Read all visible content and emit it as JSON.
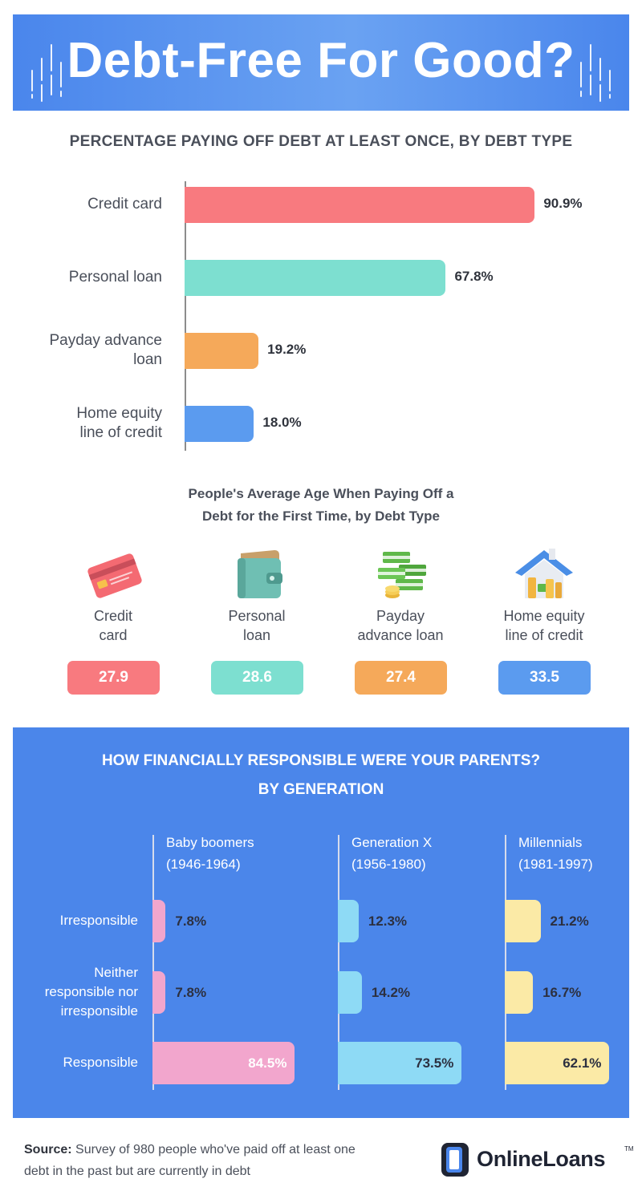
{
  "header": {
    "title": "Debt-Free For Good?"
  },
  "section1": {
    "title": "PERCENTAGE PAYING OFF DEBT AT LEAST ONCE, BY DEBT TYPE"
  },
  "section2": {
    "title_line1": "People's Average Age When Paying Off a",
    "title_line2": "Debt for the First Time, by Debt Type",
    "items": [
      {
        "label_line1": "Credit",
        "label_line2": "card",
        "value": "27.9",
        "color": "#f87a7f",
        "icon": "credit-card-icon"
      },
      {
        "label_line1": "Personal",
        "label_line2": "loan",
        "value": "28.6",
        "color": "#7ddfd0",
        "icon": "wallet-icon"
      },
      {
        "label_line1": "Payday",
        "label_line2": "advance loan",
        "value": "27.4",
        "color": "#f5a95a",
        "icon": "cash-stack-icon"
      },
      {
        "label_line1": "Home equity",
        "label_line2": "line of credit",
        "value": "33.5",
        "color": "#5b9bef",
        "icon": "house-coins-icon"
      }
    ]
  },
  "section3": {
    "title_line1": "HOW FINANCIALLY RESPONSIBLE WERE YOUR PARENTS?",
    "title_line2": "BY GENERATION"
  },
  "source": {
    "label": "Source:",
    "text": " Survey of 980 people who've paid off at least one debt in the past but are currently in debt"
  },
  "logo": {
    "text": "OnlineLoans",
    "tm": "TM"
  },
  "chart_data": [
    {
      "type": "bar",
      "orientation": "horizontal",
      "title": "PERCENTAGE PAYING OFF DEBT AT LEAST ONCE, BY DEBT TYPE",
      "categories": [
        [
          "Credit card"
        ],
        [
          "Personal loan"
        ],
        [
          "Payday advance",
          "loan"
        ],
        [
          "Home equity",
          "line of credit"
        ]
      ],
      "values": [
        90.9,
        67.8,
        19.2,
        18.0
      ],
      "labels": [
        "90.9%",
        "67.8%",
        "19.2%",
        "18.0%"
      ],
      "colors": [
        "#f87a7f",
        "#7ddfd0",
        "#f5a95a",
        "#5b9bef"
      ],
      "xlim": [
        0,
        100
      ],
      "grid": false,
      "legend": "none"
    },
    {
      "type": "bar",
      "orientation": "horizontal",
      "title": "HOW FINANCIALLY RESPONSIBLE WERE YOUR PARENTS? BY GENERATION",
      "categories": [
        [
          "Irresponsible"
        ],
        [
          "Neither",
          "responsible nor",
          "irresponsible"
        ],
        [
          "Responsible"
        ]
      ],
      "series": [
        {
          "name": "Baby boomers",
          "years": "(1946-1964)",
          "values": [
            7.8,
            7.8,
            84.5
          ],
          "labels": [
            "7.8%",
            "7.8%",
            "84.5%"
          ],
          "color": "#f2a6cd"
        },
        {
          "name": "Generation X",
          "years": "(1956-1980)",
          "values": [
            12.3,
            14.2,
            73.5
          ],
          "labels": [
            "12.3%",
            "14.2%",
            "73.5%"
          ],
          "color": "#8edaf5"
        },
        {
          "name": "Millennials",
          "years": "(1981-1997)",
          "values": [
            21.2,
            16.7,
            62.1
          ],
          "labels": [
            "21.2%",
            "16.7%",
            "62.1%"
          ],
          "color": "#fbeaa6"
        }
      ],
      "xlim": [
        0,
        100
      ],
      "grid": false,
      "legend": "column-headers"
    }
  ]
}
